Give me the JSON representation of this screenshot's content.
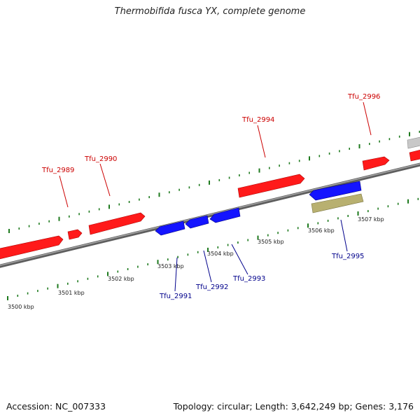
{
  "title": "Thermobifida fusca YX, complete genome",
  "accession_text": "Accession: NC_007333",
  "summary_text": "Topology: circular; Length: 3,642,249 bp; Genes: 3,176",
  "colors": {
    "forward": "#ff1a1a",
    "reverse": "#1414ff",
    "rna": "#b8b070",
    "other": "#bfbfbf",
    "tick": "#1e7a1e",
    "backbone": "#808080",
    "forward_label": "#cc0000",
    "reverse_label": "#00008b"
  },
  "ruler": {
    "labels": [
      "3500 kbp",
      "3501 kbp",
      "3502 kbp",
      "3503 kbp",
      "3504 kbp",
      "3505 kbp",
      "3506 kbp",
      "3507 kbp"
    ]
  },
  "genes": {
    "forward": [
      {
        "label": "Tfu_2989"
      },
      {
        "label": "Tfu_2990"
      },
      {
        "label": "Tfu_2994"
      },
      {
        "label": "Tfu_2996"
      }
    ],
    "reverse": [
      {
        "label": "Tfu_2991"
      },
      {
        "label": "Tfu_2992"
      },
      {
        "label": "Tfu_2993"
      },
      {
        "label": "Tfu_2995"
      }
    ]
  }
}
